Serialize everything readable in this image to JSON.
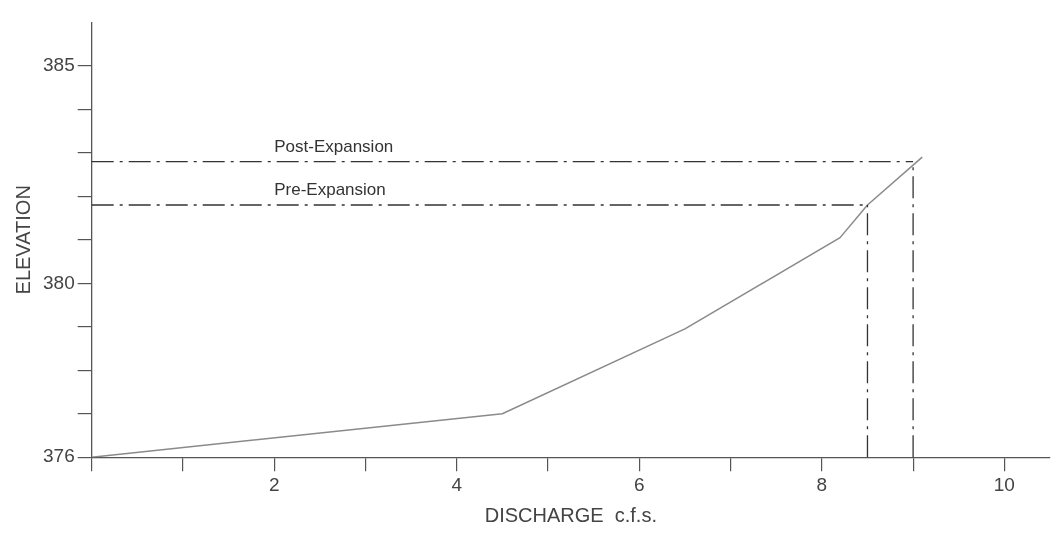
{
  "chart_data": {
    "type": "line",
    "xlabel": "DISCHARGE  c.f.s.",
    "ylabel": "ELEVATION",
    "x": [
      0,
      4.5,
      6.5,
      8.2,
      8.5,
      9.1
    ],
    "series": [
      {
        "color": "#8a8a8a",
        "values": [
          376,
          377,
          378.95,
          381.05,
          381.8,
          382.9
        ]
      }
    ],
    "xlim": [
      0,
      10.5
    ],
    "xticks": [
      {
        "value": 0,
        "label": null
      },
      {
        "value": 1,
        "label": null
      },
      2,
      {
        "value": 3,
        "label": null
      },
      4,
      {
        "value": 5,
        "label": null
      },
      6,
      {
        "value": 7,
        "label": null
      },
      8,
      {
        "value": 9,
        "label": null
      },
      10
    ],
    "ylim": [
      376,
      386
    ],
    "yticks": [
      376,
      {
        "value": 377,
        "label": null
      },
      {
        "value": 378,
        "label": null
      },
      {
        "value": 379,
        "label": null
      },
      380,
      {
        "value": 381,
        "label": null
      },
      {
        "value": 382,
        "label": null
      },
      {
        "value": 383,
        "label": null
      },
      {
        "value": 384,
        "label": null
      },
      385
    ],
    "marker": "none",
    "line_style": "solid",
    "ref_lines": [
      {
        "axis": "y",
        "value": 382.8,
        "label": "Post-Expansion",
        "color": "#333333",
        "line_style": "dashdot"
      },
      {
        "axis": "y",
        "value": 381.8,
        "label": "Pre-Expansion",
        "color": "#333333",
        "line_style": "dashdot"
      },
      {
        "axis": "x",
        "value": 9,
        "color": "#333333",
        "line_style": "dashdot"
      },
      {
        "axis": "x",
        "value": 8.5,
        "color": "#333333",
        "line_style": "dashdot"
      }
    ]
  }
}
